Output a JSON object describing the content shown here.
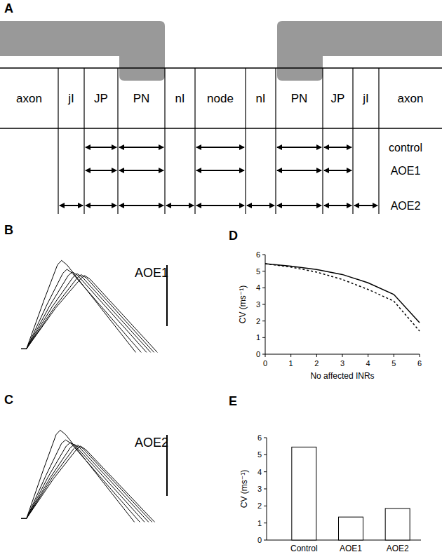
{
  "diagram": {
    "label": "A",
    "regions": [
      "axon",
      "jI",
      "JP",
      "PN",
      "nI",
      "node",
      "nI",
      "PN",
      "JP",
      "jI",
      "axon"
    ],
    "rows": [
      {
        "name": "control",
        "spans": [
          false,
          false,
          true,
          true,
          false,
          true,
          false,
          true,
          true,
          false,
          false
        ]
      },
      {
        "name": "AOE1",
        "spans": [
          false,
          false,
          true,
          true,
          false,
          true,
          false,
          true,
          true,
          false,
          false
        ]
      },
      {
        "name": "AOE2",
        "spans": [
          false,
          true,
          true,
          true,
          true,
          true,
          true,
          true,
          true,
          true,
          false
        ]
      }
    ]
  },
  "chart_data": [
    {
      "type": "line",
      "title": "B",
      "annotation": "AOE1",
      "xlim": [
        0,
        210
      ],
      "ylim": [
        -10,
        105
      ],
      "tick_labels": false,
      "series": [
        {
          "color": "#000000",
          "x": [
            0,
            8,
            34,
            54,
            60,
            68,
            170
          ],
          "values": [
            0,
            0,
            55,
            95,
            100,
            95,
            -4
          ]
        },
        {
          "color": "#000000",
          "x": [
            0,
            8,
            38,
            62,
            68,
            76,
            178
          ],
          "values": [
            0,
            0,
            49.5,
            85.5,
            90,
            85.5,
            -4
          ]
        },
        {
          "color": "#000000",
          "x": [
            0,
            8,
            42,
            70,
            76,
            84,
            186
          ],
          "values": [
            0,
            0,
            48,
            83,
            87,
            83,
            -4
          ]
        },
        {
          "color": "#000000",
          "x": [
            0,
            8,
            45.5,
            77,
            83,
            91,
            192
          ],
          "values": [
            0,
            0,
            47,
            81,
            85,
            81,
            -4
          ]
        },
        {
          "color": "#000000",
          "x": [
            0,
            8,
            48.5,
            83,
            89,
            97,
            197
          ],
          "values": [
            0,
            0,
            46,
            80,
            84,
            80,
            -4
          ]
        },
        {
          "color": "#000000",
          "x": [
            0,
            8,
            51,
            88,
            94,
            102,
            202
          ],
          "values": [
            0,
            0,
            46,
            79,
            83,
            79,
            -4
          ]
        }
      ]
    },
    {
      "type": "line",
      "title": "C",
      "annotation": "AOE2",
      "xlim": [
        0,
        210
      ],
      "ylim": [
        -10,
        105
      ],
      "tick_labels": false,
      "series": [
        {
          "color": "#000000",
          "x": [
            0,
            8,
            33,
            52,
            58,
            66,
            168
          ],
          "values": [
            0,
            0,
            55,
            95,
            100,
            95,
            -4
          ]
        },
        {
          "color": "#000000",
          "x": [
            0,
            8,
            37,
            60,
            66,
            74,
            176
          ],
          "values": [
            0,
            0,
            49,
            85,
            89,
            85,
            -4
          ]
        },
        {
          "color": "#000000",
          "x": [
            0,
            8,
            40,
            67,
            73,
            81,
            183
          ],
          "values": [
            0,
            0,
            47,
            82,
            86,
            82,
            -4
          ]
        },
        {
          "color": "#000000",
          "x": [
            0,
            8,
            43,
            73,
            79,
            87,
            189
          ],
          "values": [
            0,
            0,
            46,
            80,
            84,
            80,
            -4
          ]
        },
        {
          "color": "#000000",
          "x": [
            0,
            8,
            46,
            78,
            84,
            92,
            194
          ],
          "values": [
            0,
            0,
            46,
            79,
            83,
            79,
            -4
          ]
        },
        {
          "color": "#000000",
          "x": [
            0,
            8,
            48,
            82,
            88,
            96,
            198
          ],
          "values": [
            0,
            0,
            45,
            78,
            82,
            78,
            -4
          ]
        }
      ]
    },
    {
      "type": "line",
      "title": "D",
      "x_label": "No affected INRs",
      "y_label": "CV (ms⁻¹)",
      "x": [
        0,
        1,
        2,
        3,
        4,
        5,
        6
      ],
      "xlim": [
        0,
        6
      ],
      "xticks": [
        0,
        1,
        2,
        3,
        4,
        5,
        6
      ],
      "ylim": [
        0,
        6
      ],
      "yticks": [
        0,
        1,
        2,
        3,
        4,
        5,
        6
      ],
      "grid": false,
      "series": [
        {
          "color": "#000000",
          "line_style": "solid",
          "values": [
            5.45,
            5.3,
            5.1,
            4.8,
            4.3,
            3.6,
            1.9
          ]
        },
        {
          "color": "#000000",
          "line_style": "dotted",
          "values": [
            5.45,
            5.25,
            4.95,
            4.5,
            3.9,
            3.2,
            1.4
          ]
        }
      ]
    },
    {
      "type": "bar",
      "title": "E",
      "y_label": "CV (ms⁻¹)",
      "categories": [
        "Control",
        "AOE1",
        "AOE2"
      ],
      "values": [
        5.45,
        1.35,
        1.85
      ],
      "color": "#ffffff",
      "ylim": [
        0,
        6
      ],
      "yticks": [
        0,
        1,
        2,
        3,
        4,
        5,
        6
      ],
      "grid": false
    }
  ]
}
